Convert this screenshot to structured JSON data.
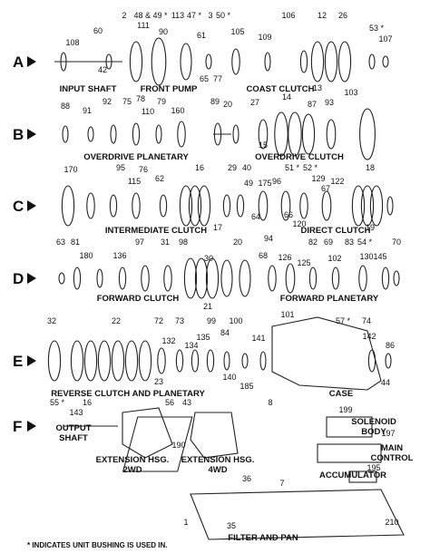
{
  "rows": [
    "A",
    "B",
    "C",
    "D",
    "E",
    "F"
  ],
  "sections": [
    "INPUT SHAFT",
    "FRONT PUMP",
    "COAST CLUTCH",
    "OVERDRIVE PLANETARY",
    "OVERDRIVE CLUTCH",
    "INTERMEDIATE CLUTCH",
    "DIRECT CLUTCH",
    "FORWARD CLUTCH",
    "FORWARD PLANETARY",
    "REVERSE CLUTCH AND PLANETARY",
    "CASE",
    "OUTPUT",
    "SHAFT",
    "EXTENSION HSG.",
    "2WD",
    "EXTENSION HSG.",
    "4WD",
    "SOLENOID",
    "BODY",
    "MAIN",
    "CONTROL",
    "ACCUMULATOR",
    "FILTER AND PAN"
  ],
  "callouts": [
    "108",
    "2",
    "60",
    "42",
    "48 & 49 *",
    "111",
    "90",
    "113",
    "47 *",
    "3",
    "61",
    "65",
    "77",
    "50 *",
    "105",
    "106",
    "109",
    "12",
    "26",
    "13",
    "53 *",
    "107",
    "88",
    "91",
    "92",
    "75",
    "78",
    "79",
    "110",
    "160",
    "89",
    "20",
    "27",
    "14",
    "87",
    "93",
    "103",
    "15",
    "170",
    "95",
    "115",
    "76",
    "62",
    "16",
    "29",
    "40",
    "49",
    "175",
    "96",
    "51 *",
    "52 *",
    "129",
    "67",
    "122",
    "18",
    "66",
    "120",
    "17",
    "19",
    "64",
    "94",
    "63",
    "81",
    "180",
    "136",
    "97",
    "31",
    "98",
    "20",
    "30",
    "68",
    "126",
    "125",
    "82",
    "69",
    "102",
    "83",
    "54 *",
    "130",
    "145",
    "70",
    "21",
    "32",
    "22",
    "72",
    "73",
    "132",
    "134",
    "99",
    "135",
    "84",
    "100",
    "101",
    "141",
    "57 *",
    "74",
    "142",
    "86",
    "140",
    "185",
    "23",
    "44",
    "55 *",
    "16",
    "143",
    "56",
    "43",
    "190",
    "8",
    "199",
    "197",
    "7",
    "36",
    "195",
    "1",
    "35",
    "210"
  ],
  "footnote": "* INDICATES UNIT BUSHING IS USED IN."
}
